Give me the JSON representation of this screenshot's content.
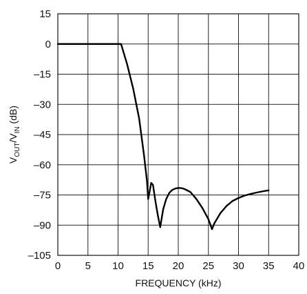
{
  "chart_data": {
    "type": "line",
    "title": "",
    "xlabel": "FREQUENCY (kHz)",
    "ylabel": {
      "main": "V",
      "sub1": "OUT",
      "mid": "/V",
      "sub2": "IN",
      "unit": " (dB)"
    },
    "xlim": [
      0,
      40
    ],
    "ylim": [
      -105,
      15
    ],
    "x_ticks": [
      0,
      5,
      10,
      15,
      20,
      25,
      30,
      35,
      40
    ],
    "y_ticks": [
      15,
      0,
      -15,
      -30,
      -45,
      -60,
      -75,
      -90,
      -105
    ],
    "x_tick_labels": [
      "0",
      "5",
      "10",
      "15",
      "20",
      "25",
      "30",
      "35",
      "40"
    ],
    "y_tick_labels": [
      "15",
      "0",
      "–15",
      "–30",
      "–45",
      "–60",
      "–75",
      "–90",
      "–105"
    ],
    "grid": true,
    "series": [
      {
        "x": [
          0,
          10.5,
          11.5,
          12.5,
          13.5,
          14.3,
          14.8,
          15.0,
          15.2,
          15.5,
          15.8,
          16.2,
          16.6,
          17.0,
          17.5,
          18.0,
          18.5,
          19.0,
          19.5,
          20.0,
          20.5,
          21.0,
          22.0,
          23.0,
          24.0,
          25.0,
          25.6,
          26.0,
          27.0,
          28.0,
          29.0,
          30.0,
          31.0,
          32.0,
          33.0,
          34.0,
          35.0
        ],
        "y": [
          0,
          0,
          -10,
          -22,
          -37,
          -55,
          -68,
          -77,
          -74,
          -69,
          -70,
          -78,
          -85,
          -91,
          -82,
          -77,
          -74,
          -72.5,
          -71.8,
          -71.5,
          -71.6,
          -72,
          -73.5,
          -77,
          -81.5,
          -87,
          -92,
          -89,
          -84,
          -80.5,
          -78,
          -76.5,
          -75.3,
          -74.5,
          -73.8,
          -73.2,
          -72.7
        ]
      }
    ]
  }
}
